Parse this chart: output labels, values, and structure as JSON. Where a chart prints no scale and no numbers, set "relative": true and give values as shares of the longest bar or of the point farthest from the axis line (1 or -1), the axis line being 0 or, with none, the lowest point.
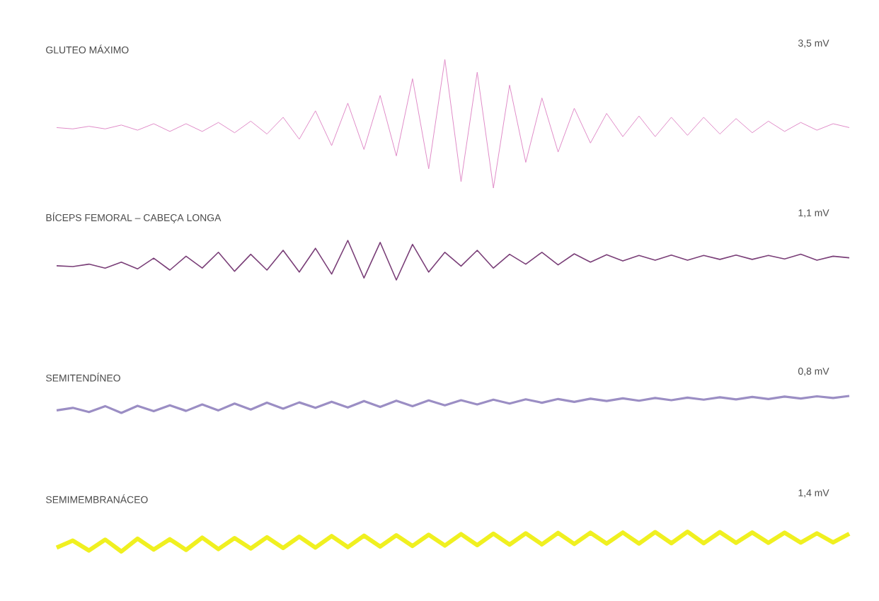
{
  "chart_data": [
    {
      "type": "line",
      "title": "GLUTEO MÁXIMO",
      "annotations": [
        "3,5 mV"
      ],
      "relative": true,
      "color": "#e08cc8",
      "categories": [
        null,
        null,
        null,
        null,
        null,
        null,
        null,
        null,
        null,
        null,
        null,
        null,
        null,
        null,
        null,
        null,
        null,
        null,
        null,
        null,
        null,
        null,
        null,
        null,
        null,
        null,
        null,
        null,
        null,
        null,
        null,
        null,
        null,
        null,
        null,
        null,
        null,
        null,
        null,
        null,
        null,
        null,
        null,
        null,
        null,
        null,
        null,
        null,
        null,
        null
      ],
      "values": [
        0.47,
        0.46,
        0.48,
        0.46,
        0.49,
        0.45,
        0.5,
        0.44,
        0.5,
        0.44,
        0.51,
        0.43,
        0.52,
        0.42,
        0.55,
        0.38,
        0.6,
        0.33,
        0.66,
        0.3,
        0.72,
        0.25,
        0.85,
        0.15,
        1.0,
        0.05,
        0.9,
        0.0,
        0.8,
        0.2,
        0.7,
        0.28,
        0.62,
        0.35,
        0.58,
        0.4,
        0.56,
        0.4,
        0.55,
        0.41,
        0.55,
        0.42,
        0.54,
        0.43,
        0.52,
        0.44,
        0.51,
        0.45,
        0.5,
        0.47
      ]
    },
    {
      "type": "line",
      "title": "BÍCEPS FEMORAL – CABEÇA LONGA",
      "annotations": [
        "1,1 mV"
      ],
      "relative": true,
      "color": "#7a3f78",
      "categories": [
        null,
        null,
        null,
        null,
        null,
        null,
        null,
        null,
        null,
        null,
        null,
        null,
        null,
        null,
        null,
        null,
        null,
        null,
        null,
        null,
        null,
        null,
        null,
        null,
        null,
        null,
        null,
        null,
        null,
        null,
        null,
        null,
        null,
        null,
        null,
        null,
        null,
        null,
        null,
        null,
        null,
        null,
        null,
        null,
        null,
        null,
        null,
        null,
        null,
        null
      ],
      "values": [
        0.36,
        0.34,
        0.4,
        0.3,
        0.45,
        0.28,
        0.55,
        0.25,
        0.6,
        0.3,
        0.7,
        0.22,
        0.65,
        0.25,
        0.75,
        0.2,
        0.8,
        0.15,
        1.0,
        0.05,
        0.95,
        0.0,
        0.9,
        0.2,
        0.7,
        0.35,
        0.75,
        0.3,
        0.65,
        0.4,
        0.7,
        0.38,
        0.66,
        0.45,
        0.64,
        0.48,
        0.62,
        0.5,
        0.63,
        0.5,
        0.62,
        0.52,
        0.63,
        0.52,
        0.62,
        0.53,
        0.65,
        0.5,
        0.6,
        0.56
      ]
    },
    {
      "type": "line",
      "title": "SEMITENDÍNEO",
      "annotations": [
        "0,8 mV"
      ],
      "relative": true,
      "color": "#9b8ec4",
      "categories": [
        null,
        null,
        null,
        null,
        null,
        null,
        null,
        null,
        null,
        null,
        null,
        null,
        null,
        null,
        null,
        null,
        null,
        null,
        null,
        null,
        null,
        null,
        null,
        null,
        null,
        null,
        null,
        null,
        null,
        null,
        null,
        null,
        null,
        null,
        null,
        null,
        null,
        null,
        null,
        null,
        null,
        null,
        null,
        null,
        null,
        null,
        null,
        null,
        null,
        null
      ],
      "values": [
        0.15,
        0.3,
        0.05,
        0.4,
        0.0,
        0.42,
        0.1,
        0.45,
        0.12,
        0.5,
        0.15,
        0.55,
        0.2,
        0.6,
        0.25,
        0.62,
        0.3,
        0.66,
        0.32,
        0.7,
        0.35,
        0.72,
        0.4,
        0.74,
        0.45,
        0.75,
        0.5,
        0.78,
        0.55,
        0.8,
        0.6,
        0.82,
        0.65,
        0.84,
        0.7,
        0.86,
        0.72,
        0.88,
        0.75,
        0.9,
        0.78,
        0.92,
        0.8,
        0.94,
        0.82,
        0.96,
        0.85,
        0.98,
        0.88,
        1.0
      ]
    },
    {
      "type": "line",
      "title": "SEMIMEMBRANÁCEO",
      "annotations": [
        "1,4 mV"
      ],
      "relative": true,
      "color": "#f0f020",
      "categories": [
        null,
        null,
        null,
        null,
        null,
        null,
        null,
        null,
        null,
        null,
        null,
        null,
        null,
        null,
        null,
        null,
        null,
        null,
        null,
        null,
        null,
        null,
        null,
        null,
        null,
        null,
        null,
        null,
        null,
        null,
        null,
        null,
        null,
        null,
        null,
        null,
        null,
        null,
        null,
        null,
        null,
        null,
        null,
        null,
        null,
        null,
        null,
        null,
        null,
        null
      ],
      "values": [
        0.2,
        0.55,
        0.05,
        0.6,
        0.0,
        0.65,
        0.1,
        0.62,
        0.08,
        0.7,
        0.12,
        0.68,
        0.15,
        0.72,
        0.18,
        0.75,
        0.2,
        0.78,
        0.22,
        0.8,
        0.25,
        0.82,
        0.28,
        0.85,
        0.3,
        0.88,
        0.32,
        0.9,
        0.35,
        0.92,
        0.36,
        0.94,
        0.38,
        0.95,
        0.4,
        0.96,
        0.4,
        0.98,
        0.42,
        1.0,
        0.42,
        0.98,
        0.44,
        0.96,
        0.44,
        0.95,
        0.45,
        0.92,
        0.46,
        0.9
      ]
    }
  ]
}
